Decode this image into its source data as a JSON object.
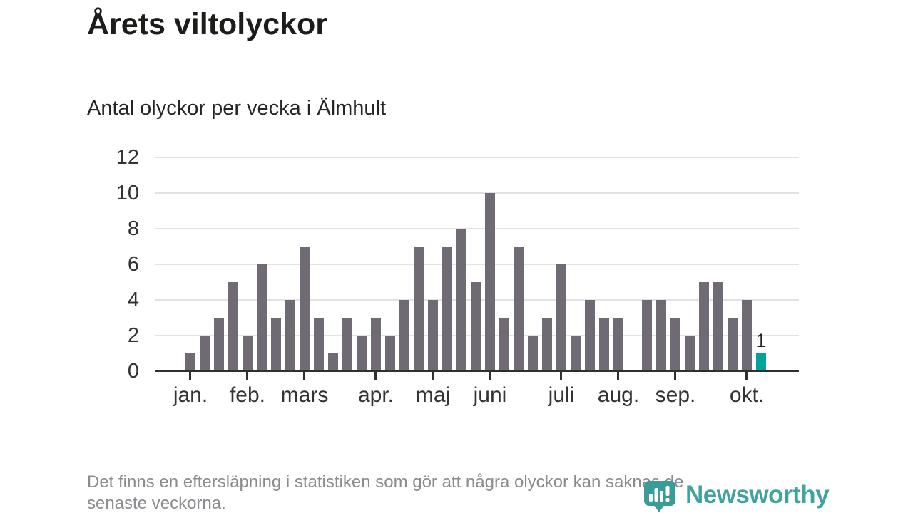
{
  "page": {
    "title": "Årets viltolyckor",
    "subtitle": "Antal olyckor per vecka i Älmhult"
  },
  "footnote": {
    "line1": "Det finns en eftersläpning i statistiken som gör att några olyckor kan saknas de",
    "line2": "senaste veckorna."
  },
  "brand": {
    "name": "Newsworthy",
    "icon": "newsworthy-speech-bubble-bar-chart-icon"
  },
  "colors": {
    "bar": "#6f6a73",
    "highlight": "#00a39a",
    "grid": "#e2e2e2",
    "axis": "#2f2f2f",
    "brand": "#41a3a0"
  },
  "chart_data": {
    "type": "bar",
    "title": "Årets viltolyckor",
    "subtitle": "Antal olyckor per vecka i Älmhult",
    "x_unit": "vecka",
    "y_unit": "antal olyckor",
    "values": [
      1,
      2,
      3,
      5,
      2,
      6,
      3,
      4,
      7,
      3,
      1,
      3,
      2,
      3,
      2,
      4,
      7,
      4,
      7,
      8,
      5,
      10,
      3,
      7,
      2,
      3,
      6,
      2,
      4,
      3,
      3,
      0,
      4,
      4,
      3,
      2,
      5,
      5,
      3,
      4,
      1
    ],
    "x_ticks": [
      {
        "bar_index": 0,
        "label": "jan."
      },
      {
        "bar_index": 4,
        "label": "feb."
      },
      {
        "bar_index": 8,
        "label": "mars"
      },
      {
        "bar_index": 13,
        "label": "apr."
      },
      {
        "bar_index": 17,
        "label": "maj"
      },
      {
        "bar_index": 21,
        "label": "juni"
      },
      {
        "bar_index": 26,
        "label": "juli"
      },
      {
        "bar_index": 30,
        "label": "aug."
      },
      {
        "bar_index": 34,
        "label": "sep."
      },
      {
        "bar_index": 39,
        "label": "okt."
      }
    ],
    "y_ticks": [
      0,
      2,
      4,
      6,
      8,
      10,
      12
    ],
    "ylim": [
      0,
      12
    ],
    "grid": true,
    "legend": "none",
    "highlight_last_bar": true,
    "last_bar_label": "1"
  }
}
